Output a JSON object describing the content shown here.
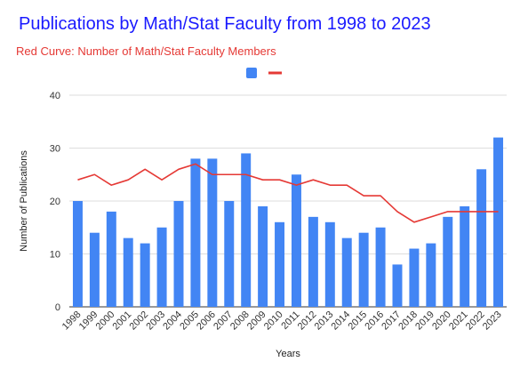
{
  "title": "Publications by Math/Stat Faculty from 1998 to 2023",
  "subtitle": "Red Curve: Number of Math/Stat Faculty Members",
  "chart_data": {
    "type": "bar",
    "title": "Publications by Math/Stat Faculty from 1998 to 2023",
    "subtitle": "Red Curve: Number of Math/Stat Faculty Members",
    "xlabel": "Years",
    "ylabel": "Number of Publications",
    "ylim": [
      0,
      40
    ],
    "yticks": [
      0,
      10,
      20,
      30,
      40
    ],
    "grid": true,
    "legend_position": "top-center",
    "categories": [
      "1998",
      "1999",
      "2000",
      "2001",
      "2002",
      "2003",
      "2004",
      "2005",
      "2006",
      "2007",
      "2008",
      "2009",
      "2010",
      "2011",
      "2012",
      "2013",
      "2014",
      "2015",
      "2016",
      "2017",
      "2018",
      "2019",
      "2020",
      "2021",
      "2022",
      "2023"
    ],
    "series": [
      {
        "type": "bar",
        "color": "#4285f4",
        "values": [
          20,
          14,
          18,
          13,
          12,
          15,
          20,
          28,
          28,
          20,
          29,
          19,
          16,
          25,
          17,
          16,
          13,
          14,
          15,
          8,
          11,
          12,
          17,
          19,
          26,
          32
        ]
      },
      {
        "type": "line",
        "color": "#e53935",
        "values": [
          24,
          25,
          23,
          24,
          26,
          24,
          26,
          27,
          25,
          25,
          25,
          24,
          24,
          23,
          24,
          23,
          23,
          21,
          21,
          18,
          16,
          17,
          18,
          18,
          18,
          18
        ]
      }
    ]
  }
}
